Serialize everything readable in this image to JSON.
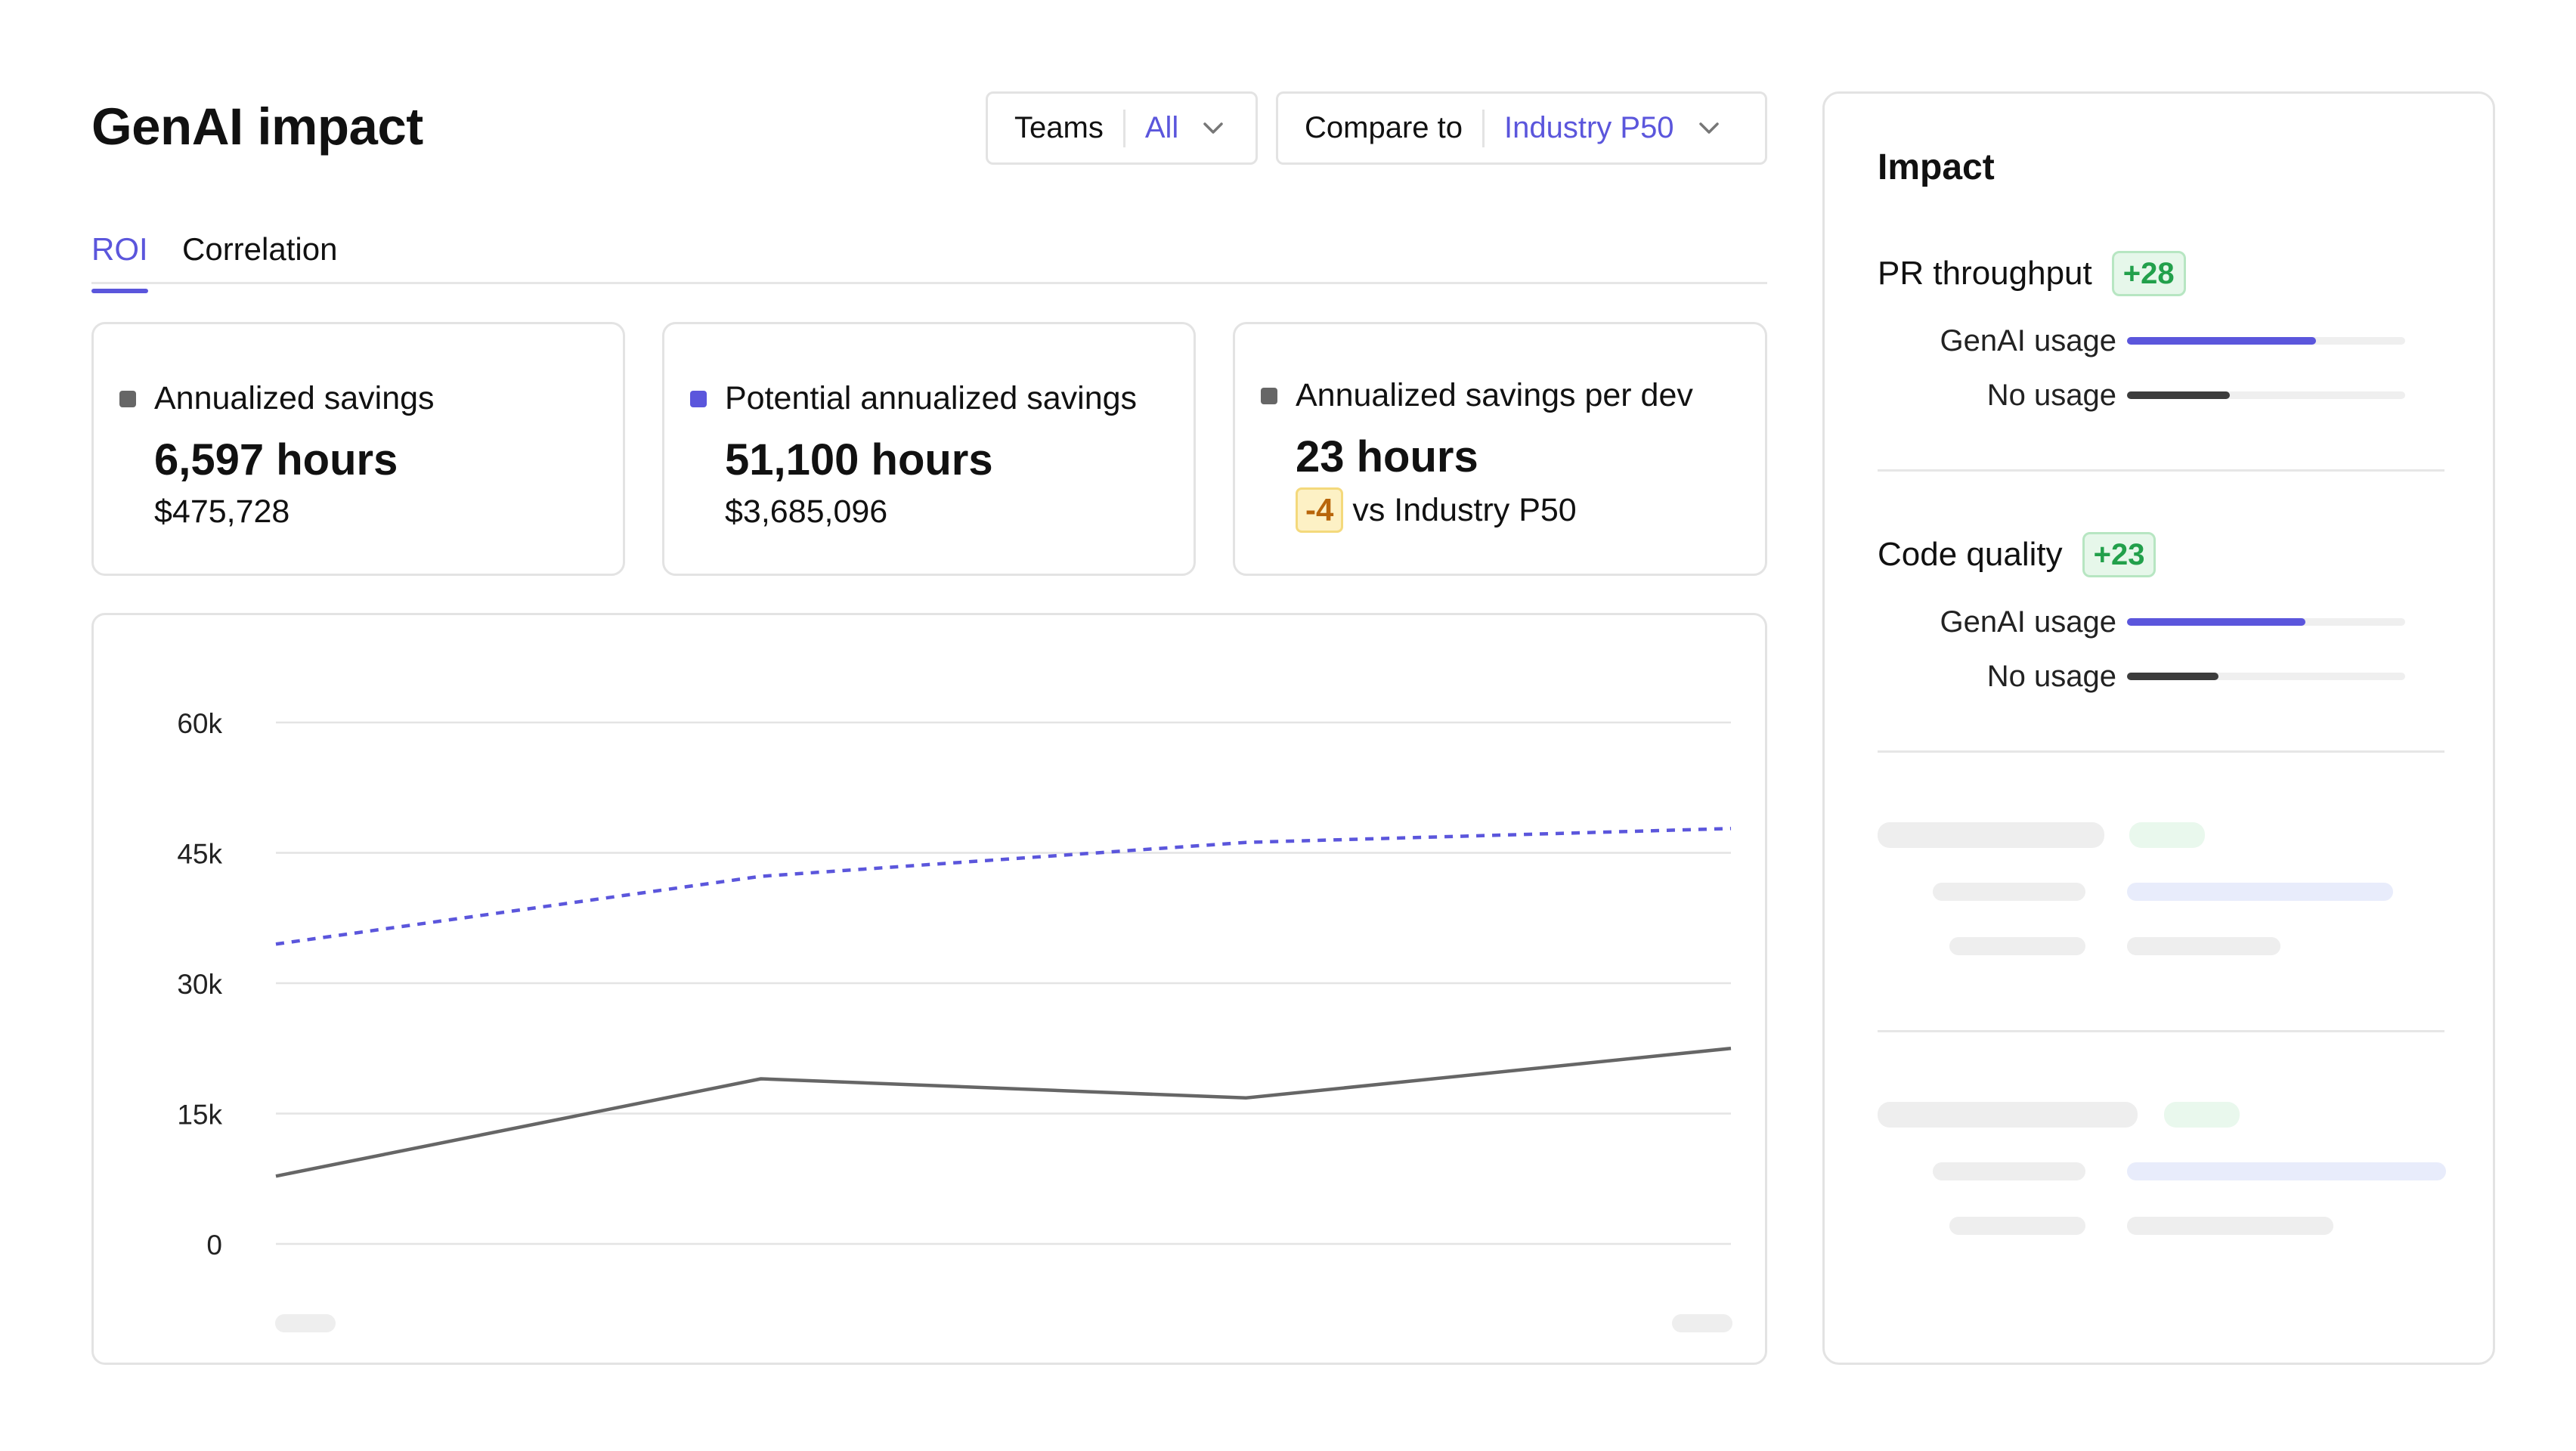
{
  "header": {
    "title": "GenAI impact",
    "teams_filter": {
      "label": "Teams",
      "value": "All"
    },
    "compare_filter": {
      "label": "Compare to",
      "value": "Industry P50"
    }
  },
  "tabs": [
    {
      "label": "ROI",
      "active": true
    },
    {
      "label": "Correlation",
      "active": false
    }
  ],
  "cards": [
    {
      "title": "Annualized savings",
      "value": "6,597 hours",
      "sub": "$475,728",
      "marker_color": "#666666"
    },
    {
      "title": "Potential annualized savings",
      "value": "51,100 hours",
      "sub": "$3,685,096",
      "marker_color": "#5b56dc"
    },
    {
      "title": "Annualized savings per dev",
      "value": "23 hours",
      "delta": "-4",
      "sub": "vs Industry P50",
      "marker_color": "#666666"
    }
  ],
  "chart_data": {
    "type": "line",
    "x": [
      0,
      1,
      2,
      3
    ],
    "yticks": [
      "60k",
      "45k",
      "30k",
      "15k",
      "0"
    ],
    "ylim": [
      0,
      60000
    ],
    "grid": true,
    "series": [
      {
        "values": [
          34500,
          42300,
          46200,
          47800
        ],
        "style": "dashed",
        "color": "#5b56dc"
      },
      {
        "values": [
          7800,
          19000,
          16800,
          22500
        ],
        "style": "solid",
        "color": "#666666"
      }
    ]
  },
  "impact": {
    "title": "Impact",
    "metrics": [
      {
        "name": "PR throughput",
        "badge": "+28",
        "bars": [
          {
            "label": "GenAI usage",
            "value": 0.68
          },
          {
            "label": "No usage",
            "value": 0.37
          }
        ]
      },
      {
        "name": "Code quality",
        "badge": "+23",
        "bars": [
          {
            "label": "GenAI usage",
            "value": 0.64
          },
          {
            "label": "No usage",
            "value": 0.33
          }
        ]
      }
    ]
  },
  "colors": {
    "accent": "#5b56dc",
    "positive": "#22a04b",
    "warning": "#b8650a",
    "border": "#e3e3e3"
  }
}
